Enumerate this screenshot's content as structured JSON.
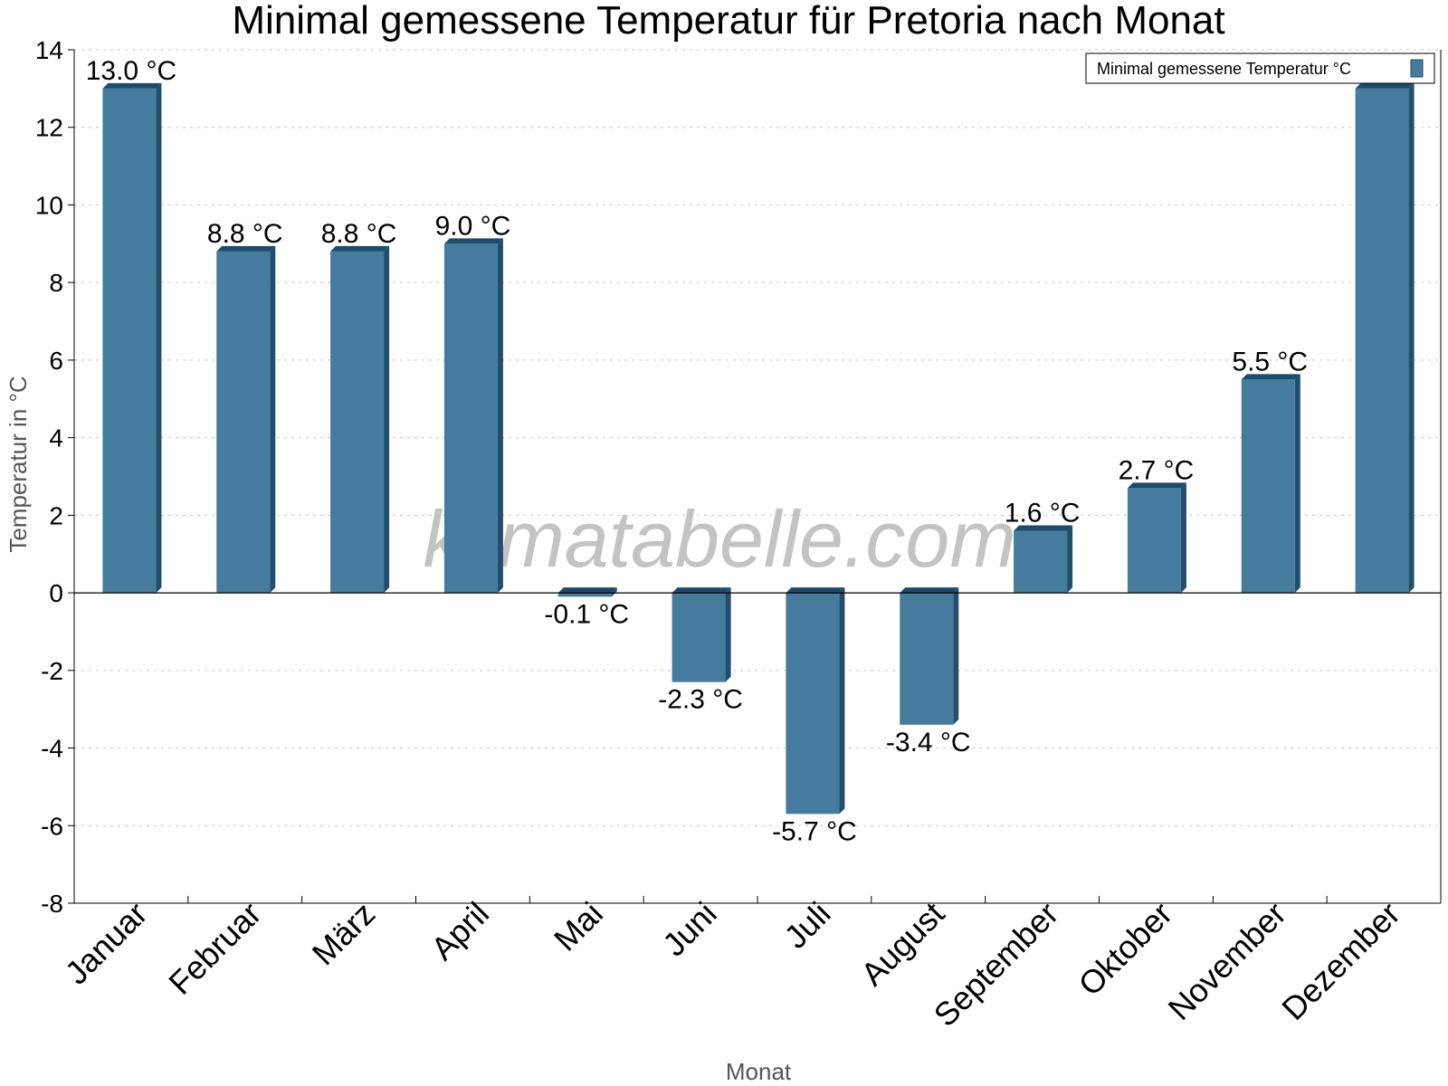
{
  "chart_data": {
    "type": "bar",
    "title": "Minimal gemessene Temperatur für Pretoria nach Monat",
    "xlabel": "Monat",
    "ylabel": "Temperatur in °C",
    "ylim": [
      -8,
      14
    ],
    "yticks": [
      14,
      12,
      10,
      8,
      6,
      4,
      2,
      0,
      -2,
      -4,
      -6,
      -8
    ],
    "grid": true,
    "legend_position": "top-right",
    "categories": [
      "Januar",
      "Februar",
      "März",
      "April",
      "Mai",
      "Juni",
      "Juli",
      "August",
      "September",
      "Oktober",
      "November",
      "Dezember"
    ],
    "series": [
      {
        "name": "Minimal gemessene Temperatur °C",
        "values": [
          13.0,
          8.8,
          8.8,
          9.0,
          -0.1,
          -2.3,
          -5.7,
          -3.4,
          1.6,
          2.7,
          5.5,
          13.0
        ],
        "labels": [
          "13.0 °C",
          "8.8 °C",
          "8.8 °C",
          "9.0 °C",
          "-0.1 °C",
          "-2.3 °C",
          "-5.7 °C",
          "-3.4 °C",
          "1.6 °C",
          "2.7 °C",
          "5.5 °C",
          ""
        ]
      }
    ],
    "watermark": "klimatabelle.com"
  },
  "colors": {
    "bar_face": "#457b9d",
    "bar_side": "#1f4e6e",
    "bar_top": "#1d4b6b",
    "grid": "#c8c8c8",
    "axis": "#000000"
  }
}
